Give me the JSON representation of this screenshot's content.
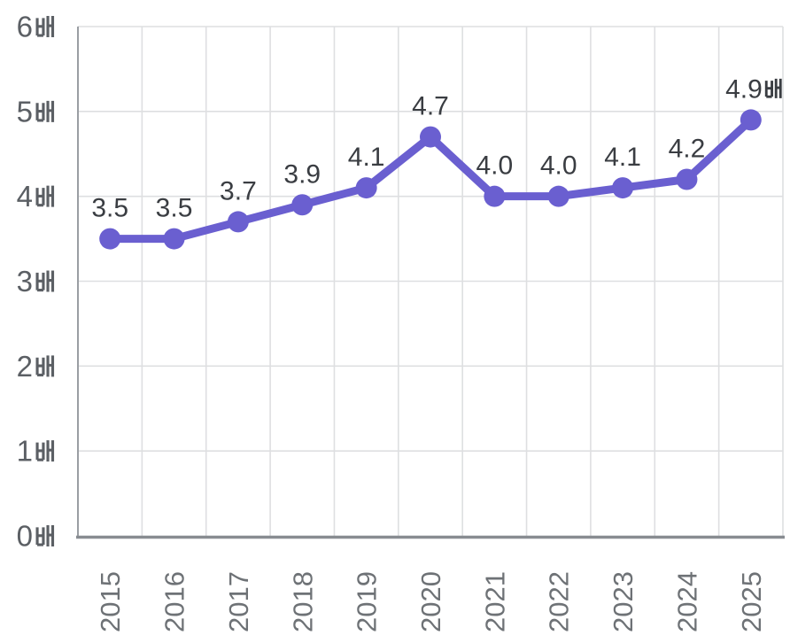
{
  "chart_data": {
    "type": "line",
    "title": "",
    "categories": [
      "2015",
      "2016",
      "2017",
      "2018",
      "2019",
      "2020",
      "2021",
      "2022",
      "2023",
      "2024",
      "2025"
    ],
    "values": [
      3.5,
      3.5,
      3.7,
      3.9,
      4.1,
      4.7,
      4.0,
      4.0,
      4.1,
      4.2,
      4.9
    ],
    "point_labels": [
      "3.5",
      "3.5",
      "3.7",
      "3.9",
      "4.1",
      "4.7",
      "4.0",
      "4.0",
      "4.1",
      "4.2",
      "4.9배"
    ],
    "unit_suffix": "배",
    "y_ticks": [
      0,
      1,
      2,
      3,
      4,
      5,
      6
    ],
    "y_tick_labels": [
      "0배",
      "1배",
      "2배",
      "3배",
      "4배",
      "5배",
      "6배"
    ],
    "ylim": [
      0,
      6
    ],
    "xlabel": "",
    "ylabel": "",
    "grid": true,
    "legend": "none",
    "x_tick_rotation": -90,
    "colors": {
      "line": "#6A5FD0",
      "marker": "#6A5FD0",
      "point_label": "#3A3D42",
      "y_tick_label": "#5B5F64",
      "x_tick_label": "#6E7276",
      "gridline": "#DEDFE1",
      "axis_line": "#888C91",
      "left_border": "#9A9EA3",
      "background": "#FFFFFF"
    }
  }
}
